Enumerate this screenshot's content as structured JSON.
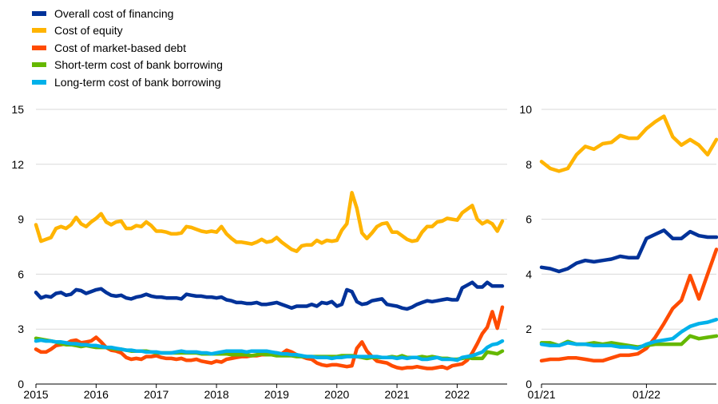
{
  "chart_data": [
    {
      "type": "line",
      "x": [
        2015.0,
        2015.083,
        2015.167,
        2015.25,
        2015.333,
        2015.417,
        2015.5,
        2015.583,
        2015.667,
        2015.75,
        2015.833,
        2015.917,
        2016.0,
        2016.083,
        2016.167,
        2016.25,
        2016.333,
        2016.417,
        2016.5,
        2016.583,
        2016.667,
        2016.75,
        2016.833,
        2016.917,
        2017.0,
        2017.083,
        2017.167,
        2017.25,
        2017.333,
        2017.417,
        2017.5,
        2017.583,
        2017.667,
        2017.75,
        2017.833,
        2017.917,
        2018.0,
        2018.083,
        2018.167,
        2018.25,
        2018.333,
        2018.417,
        2018.5,
        2018.583,
        2018.667,
        2018.75,
        2018.833,
        2018.917,
        2019.0,
        2019.083,
        2019.167,
        2019.25,
        2019.333,
        2019.417,
        2019.5,
        2019.583,
        2019.667,
        2019.75,
        2019.833,
        2019.917,
        2020.0,
        2020.083,
        2020.167,
        2020.25,
        2020.333,
        2020.417,
        2020.5,
        2020.583,
        2020.667,
        2020.75,
        2020.833,
        2020.917,
        2021.0,
        2021.083,
        2021.167,
        2021.25,
        2021.333,
        2021.417,
        2021.5,
        2021.583,
        2021.667,
        2021.75,
        2021.833,
        2021.917,
        2022.0,
        2022.083,
        2022.167,
        2022.25,
        2022.333,
        2022.417,
        2022.5,
        2022.583,
        2022.667,
        2022.75
      ],
      "series": [
        {
          "name": "Overall cost of financing",
          "color": "#003299",
          "values": [
            5.0,
            4.7,
            4.8,
            4.75,
            4.95,
            5.0,
            4.85,
            4.9,
            5.15,
            5.1,
            4.95,
            5.05,
            5.15,
            5.2,
            5.0,
            4.85,
            4.8,
            4.85,
            4.7,
            4.65,
            4.75,
            4.8,
            4.9,
            4.8,
            4.75,
            4.75,
            4.7,
            4.7,
            4.7,
            4.65,
            4.9,
            4.85,
            4.8,
            4.8,
            4.75,
            4.75,
            4.7,
            4.75,
            4.6,
            4.55,
            4.45,
            4.45,
            4.4,
            4.4,
            4.45,
            4.35,
            4.35,
            4.4,
            4.45,
            4.35,
            4.25,
            4.15,
            4.25,
            4.25,
            4.25,
            4.35,
            4.25,
            4.45,
            4.4,
            4.5,
            4.25,
            4.35,
            5.15,
            5.05,
            4.5,
            4.35,
            4.4,
            4.55,
            4.6,
            4.65,
            4.35,
            4.3,
            4.25,
            4.15,
            4.1,
            4.2,
            4.35,
            4.45,
            4.55,
            4.5,
            4.55,
            4.6,
            4.65,
            4.6,
            4.6,
            5.25,
            5.4,
            5.55,
            5.3,
            5.3,
            5.55,
            5.35,
            5.35,
            5.35
          ]
        },
        {
          "name": "Cost of equity",
          "color": "#FFB400",
          "values": [
            8.7,
            7.8,
            7.9,
            8.0,
            8.5,
            8.6,
            8.5,
            8.7,
            9.1,
            8.75,
            8.6,
            8.85,
            9.05,
            9.3,
            8.85,
            8.7,
            8.85,
            8.9,
            8.5,
            8.5,
            8.65,
            8.6,
            8.85,
            8.65,
            8.35,
            8.35,
            8.3,
            8.2,
            8.2,
            8.25,
            8.6,
            8.55,
            8.45,
            8.35,
            8.3,
            8.35,
            8.3,
            8.6,
            8.2,
            7.95,
            7.75,
            7.75,
            7.7,
            7.65,
            7.75,
            7.9,
            7.75,
            7.8,
            8.0,
            7.75,
            7.55,
            7.35,
            7.25,
            7.55,
            7.6,
            7.6,
            7.85,
            7.7,
            7.85,
            7.8,
            7.85,
            8.4,
            8.75,
            10.45,
            9.6,
            8.25,
            7.95,
            8.25,
            8.6,
            8.75,
            8.8,
            8.3,
            8.3,
            8.1,
            7.9,
            7.8,
            7.85,
            8.3,
            8.6,
            8.6,
            8.85,
            8.9,
            9.05,
            9.0,
            8.95,
            9.35,
            9.55,
            9.75,
            9.0,
            8.75,
            8.9,
            8.75,
            8.35,
            8.9
          ]
        },
        {
          "name": "Cost of market-based debt",
          "color": "#FF4B00",
          "values": [
            1.9,
            1.75,
            1.75,
            1.9,
            2.1,
            2.15,
            2.2,
            2.35,
            2.4,
            2.25,
            2.3,
            2.35,
            2.55,
            2.3,
            2.0,
            1.85,
            1.8,
            1.7,
            1.45,
            1.35,
            1.4,
            1.35,
            1.5,
            1.5,
            1.55,
            1.45,
            1.4,
            1.4,
            1.35,
            1.4,
            1.3,
            1.3,
            1.35,
            1.25,
            1.2,
            1.15,
            1.25,
            1.2,
            1.35,
            1.4,
            1.45,
            1.5,
            1.5,
            1.55,
            1.55,
            1.6,
            1.6,
            1.65,
            1.7,
            1.65,
            1.85,
            1.75,
            1.6,
            1.5,
            1.4,
            1.35,
            1.15,
            1.05,
            1.0,
            1.05,
            1.05,
            1.0,
            0.95,
            1.0,
            1.95,
            2.3,
            1.8,
            1.5,
            1.25,
            1.2,
            1.15,
            1.0,
            0.9,
            0.85,
            0.9,
            0.9,
            0.95,
            0.9,
            0.85,
            0.85,
            0.9,
            0.95,
            0.85,
            1.0,
            1.05,
            1.1,
            1.3,
            1.7,
            2.2,
            2.75,
            3.1,
            3.95,
            3.05,
            4.2
          ]
        },
        {
          "name": "Short-term cost of bank borrowing",
          "color": "#65B800",
          "values": [
            2.5,
            2.45,
            2.4,
            2.35,
            2.3,
            2.2,
            2.15,
            2.15,
            2.1,
            2.05,
            2.1,
            2.05,
            2.0,
            2.0,
            2.0,
            1.95,
            1.9,
            1.9,
            1.85,
            1.8,
            1.8,
            1.8,
            1.8,
            1.75,
            1.7,
            1.7,
            1.7,
            1.7,
            1.7,
            1.7,
            1.7,
            1.7,
            1.7,
            1.65,
            1.65,
            1.65,
            1.65,
            1.65,
            1.65,
            1.6,
            1.6,
            1.6,
            1.6,
            1.55,
            1.6,
            1.65,
            1.6,
            1.6,
            1.55,
            1.55,
            1.55,
            1.55,
            1.5,
            1.5,
            1.5,
            1.5,
            1.5,
            1.5,
            1.5,
            1.5,
            1.5,
            1.55,
            1.55,
            1.55,
            1.5,
            1.45,
            1.4,
            1.45,
            1.45,
            1.45,
            1.45,
            1.5,
            1.45,
            1.55,
            1.45,
            1.45,
            1.45,
            1.5,
            1.45,
            1.5,
            1.45,
            1.4,
            1.4,
            1.35,
            1.35,
            1.4,
            1.45,
            1.4,
            1.4,
            1.4,
            1.75,
            1.7,
            1.65,
            1.8
          ]
        },
        {
          "name": "Long-term cost of bank borrowing",
          "color": "#00B1EA",
          "values": [
            2.35,
            2.4,
            2.35,
            2.35,
            2.3,
            2.3,
            2.25,
            2.2,
            2.2,
            2.15,
            2.15,
            2.1,
            2.1,
            2.05,
            2.0,
            2.0,
            1.95,
            1.9,
            1.85,
            1.85,
            1.8,
            1.8,
            1.75,
            1.75,
            1.75,
            1.7,
            1.7,
            1.7,
            1.75,
            1.8,
            1.75,
            1.75,
            1.75,
            1.7,
            1.7,
            1.65,
            1.7,
            1.75,
            1.8,
            1.8,
            1.8,
            1.8,
            1.75,
            1.8,
            1.8,
            1.8,
            1.8,
            1.75,
            1.7,
            1.65,
            1.65,
            1.6,
            1.6,
            1.55,
            1.5,
            1.5,
            1.45,
            1.45,
            1.45,
            1.4,
            1.45,
            1.45,
            1.5,
            1.5,
            1.5,
            1.5,
            1.5,
            1.5,
            1.5,
            1.45,
            1.45,
            1.45,
            1.4,
            1.45,
            1.4,
            1.45,
            1.45,
            1.35,
            1.35,
            1.4,
            1.45,
            1.35,
            1.35,
            1.35,
            1.3,
            1.45,
            1.5,
            1.55,
            1.65,
            1.75,
            2.0,
            2.15,
            2.2,
            2.35
          ]
        }
      ],
      "ylim": [
        0,
        15
      ],
      "yticks": [
        0,
        3,
        6,
        9,
        12,
        15
      ],
      "xlim": [
        2015.0,
        2022.83
      ],
      "xticks": [
        2015,
        2016,
        2017,
        2018,
        2019,
        2020,
        2021,
        2022
      ],
      "xtick_labels": [
        "2015",
        "2016",
        "2017",
        "2018",
        "2019",
        "2020",
        "2021",
        "2022"
      ],
      "grid": "horizontal",
      "legend": "top-left"
    },
    {
      "type": "line",
      "x": [
        0,
        1,
        2,
        3,
        4,
        5,
        6,
        7,
        8,
        9,
        10,
        11,
        12,
        13,
        14,
        15,
        16,
        17,
        18,
        19,
        20
      ],
      "series": [
        {
          "name": "Overall cost of financing",
          "color": "#003299",
          "values": [
            4.25,
            4.2,
            4.1,
            4.2,
            4.4,
            4.5,
            4.45,
            4.5,
            4.55,
            4.65,
            4.6,
            4.6,
            5.3,
            5.45,
            5.6,
            5.3,
            5.3,
            5.55,
            5.4,
            5.35,
            5.35
          ]
        },
        {
          "name": "Cost of equity",
          "color": "#FFB400",
          "values": [
            8.1,
            7.85,
            7.75,
            7.85,
            8.35,
            8.65,
            8.55,
            8.75,
            8.8,
            9.05,
            8.95,
            8.95,
            9.3,
            9.55,
            9.75,
            9.0,
            8.7,
            8.9,
            8.7,
            8.35,
            8.9
          ]
        },
        {
          "name": "Cost of market-based debt",
          "color": "#FF4B00",
          "values": [
            0.85,
            0.9,
            0.9,
            0.95,
            0.95,
            0.9,
            0.85,
            0.85,
            0.95,
            1.05,
            1.05,
            1.1,
            1.3,
            1.7,
            2.2,
            2.75,
            3.05,
            3.95,
            3.1,
            4.0,
            4.9
          ]
        },
        {
          "name": "Short-term cost of bank borrowing",
          "color": "#65B800",
          "values": [
            1.5,
            1.5,
            1.4,
            1.55,
            1.45,
            1.45,
            1.5,
            1.45,
            1.5,
            1.45,
            1.4,
            1.35,
            1.4,
            1.45,
            1.45,
            1.45,
            1.45,
            1.75,
            1.65,
            1.7,
            1.75
          ]
        },
        {
          "name": "Long-term cost of bank borrowing",
          "color": "#00B1EA",
          "values": [
            1.45,
            1.4,
            1.4,
            1.5,
            1.45,
            1.45,
            1.4,
            1.4,
            1.4,
            1.35,
            1.35,
            1.3,
            1.45,
            1.55,
            1.6,
            1.65,
            1.9,
            2.1,
            2.2,
            2.25,
            2.35
          ]
        }
      ],
      "ylim": [
        0,
        10
      ],
      "yticks": [
        0,
        2,
        4,
        6,
        8,
        10
      ],
      "xlim": [
        0,
        20
      ],
      "xticks": [
        0,
        12
      ],
      "xtick_labels": [
        "01/21",
        "01/22"
      ],
      "grid": "horizontal"
    }
  ]
}
